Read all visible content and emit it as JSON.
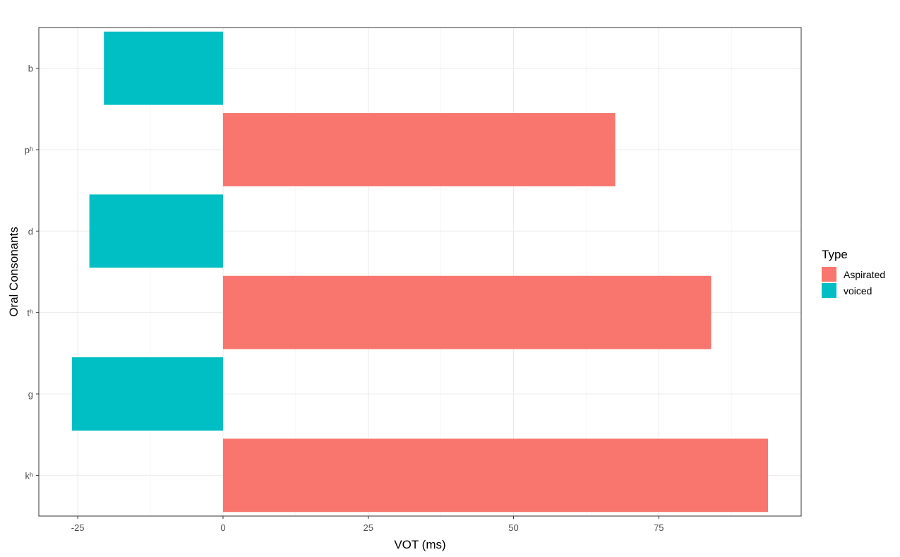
{
  "chart_data": {
    "type": "bar",
    "orientation": "horizontal",
    "categories": [
      "b",
      "pʰ",
      "d",
      "tʰ",
      "g",
      "kʰ"
    ],
    "values": [
      -20.5,
      67.5,
      -23,
      84,
      -26,
      93.8
    ],
    "series_by_category": [
      "voiced",
      "Aspirated",
      "voiced",
      "Aspirated",
      "voiced",
      "Aspirated"
    ],
    "xlabel": "VOT (ms)",
    "ylabel": "Oral Consonants",
    "xlim": [
      -31.7,
      99.5
    ],
    "xticks": [
      -25,
      0,
      25,
      50,
      75
    ],
    "xtick_labels": [
      "-25",
      "0",
      "25",
      "50",
      "75"
    ],
    "grid": true,
    "legend": {
      "title": "Type",
      "placement": "right",
      "items": [
        {
          "name": "Aspirated",
          "color": "#F8766D"
        },
        {
          "name": "voiced",
          "color": "#00BFC4"
        }
      ]
    }
  }
}
